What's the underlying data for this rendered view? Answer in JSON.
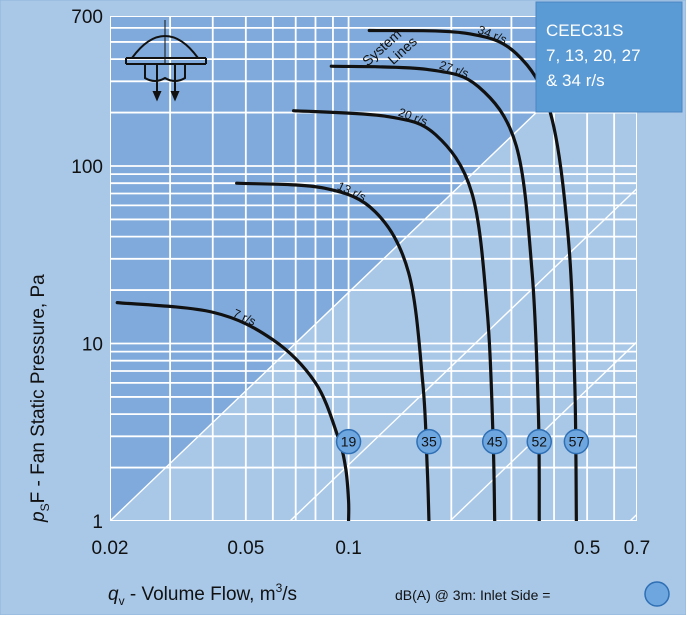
{
  "chart_data": {
    "type": "line",
    "xscale": "log",
    "yscale": "log",
    "xlim": [
      0.02,
      0.7
    ],
    "ylim": [
      1,
      700
    ],
    "grid": true,
    "xlabel": {
      "var": "q",
      "sub": "v",
      "text": " - Volume Flow, m",
      "sup": "3",
      "tail": "/s"
    },
    "ylabel": {
      "var": "p",
      "sub": "S",
      "text": "F - Fan Static Pressure, Pa"
    },
    "x_ticks": [
      {
        "value": 0.02,
        "label": "0.02"
      },
      {
        "value": 0.05,
        "label": "0.05"
      },
      {
        "value": 0.1,
        "label": "0.1"
      },
      {
        "value": 0.5,
        "label": "0.5"
      },
      {
        "value": 0.7,
        "label": "0.7"
      }
    ],
    "y_ticks": [
      {
        "value": 1,
        "label": "1"
      },
      {
        "value": 10,
        "label": "10"
      },
      {
        "value": 100,
        "label": "100"
      },
      {
        "value": 700,
        "label": "700"
      }
    ],
    "system_lines_label": "System\nLines",
    "legend": {
      "title_lines": [
        "CEEC31S",
        "7, 13, 20, 27",
        "& 34 r/s"
      ],
      "position": "top-right"
    },
    "footnote": "dB(A) @ 3m:  Inlet Side =",
    "colors": {
      "plot_bg": "#a9c8e8",
      "shade": "#7faadb",
      "grid": "#ffffff",
      "curve": "#111111",
      "badge_fill": "#6ea6df",
      "legend_box": "#5b9bd5"
    },
    "series": [
      {
        "name": "7 r/s",
        "db": "19",
        "x": [
          0.021,
          0.04,
          0.06,
          0.08,
          0.093,
          0.098,
          0.1,
          0.1
        ],
        "y": [
          17,
          15,
          10.5,
          6,
          3,
          2,
          1.3,
          1
        ]
      },
      {
        "name": "13 r/s",
        "db": "35",
        "x": [
          0.047,
          0.085,
          0.12,
          0.15,
          0.165,
          0.17,
          0.172
        ],
        "y": [
          80,
          75,
          55,
          25,
          6,
          2,
          1
        ]
      },
      {
        "name": "20 r/s",
        "db": "45",
        "x": [
          0.069,
          0.13,
          0.18,
          0.23,
          0.255,
          0.265,
          0.268
        ],
        "y": [
          205,
          190,
          150,
          70,
          15,
          3,
          1
        ]
      },
      {
        "name": "27 r/s",
        "db": "52",
        "x": [
          0.089,
          0.17,
          0.24,
          0.31,
          0.345,
          0.36,
          0.362
        ],
        "y": [
          365,
          350,
          280,
          130,
          25,
          4,
          1
        ]
      },
      {
        "name": "34 r/s",
        "db": "57",
        "x": [
          0.115,
          0.22,
          0.31,
          0.39,
          0.44,
          0.46,
          0.465
        ],
        "y": [
          580,
          560,
          430,
          200,
          40,
          6,
          1
        ]
      }
    ]
  }
}
